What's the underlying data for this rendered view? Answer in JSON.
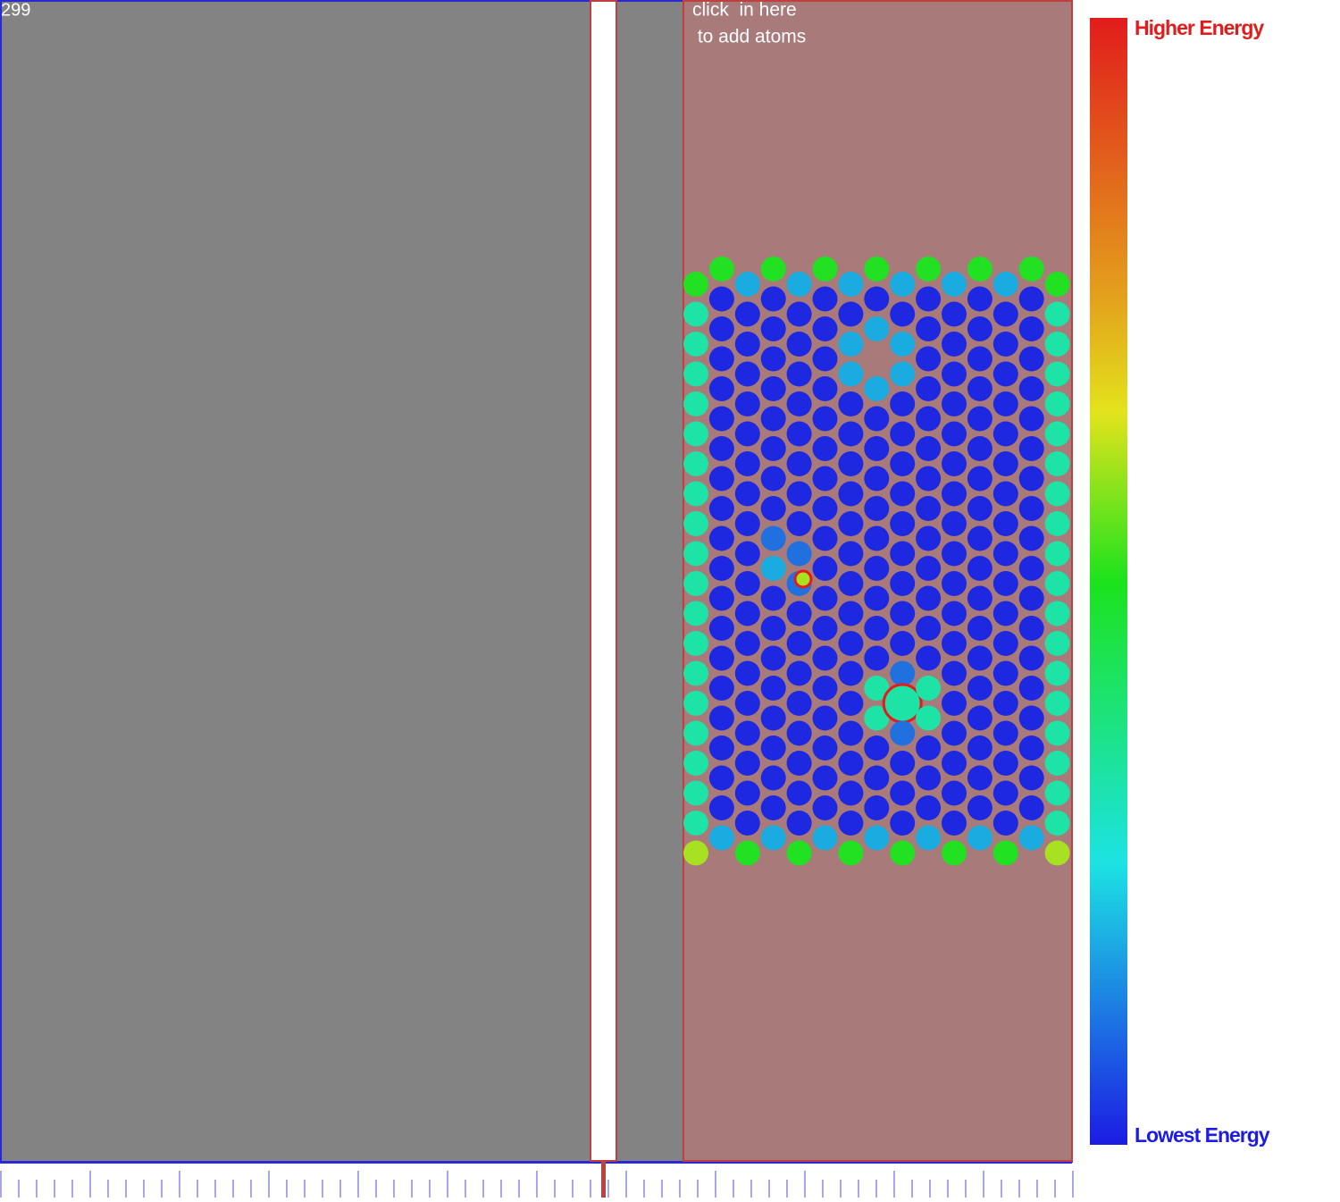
{
  "counter": "299",
  "hint": {
    "line1": "click  in here",
    "line2": " to add atoms"
  },
  "legend": {
    "high": "Higher Energy",
    "low": "Lowest Energy"
  }
}
